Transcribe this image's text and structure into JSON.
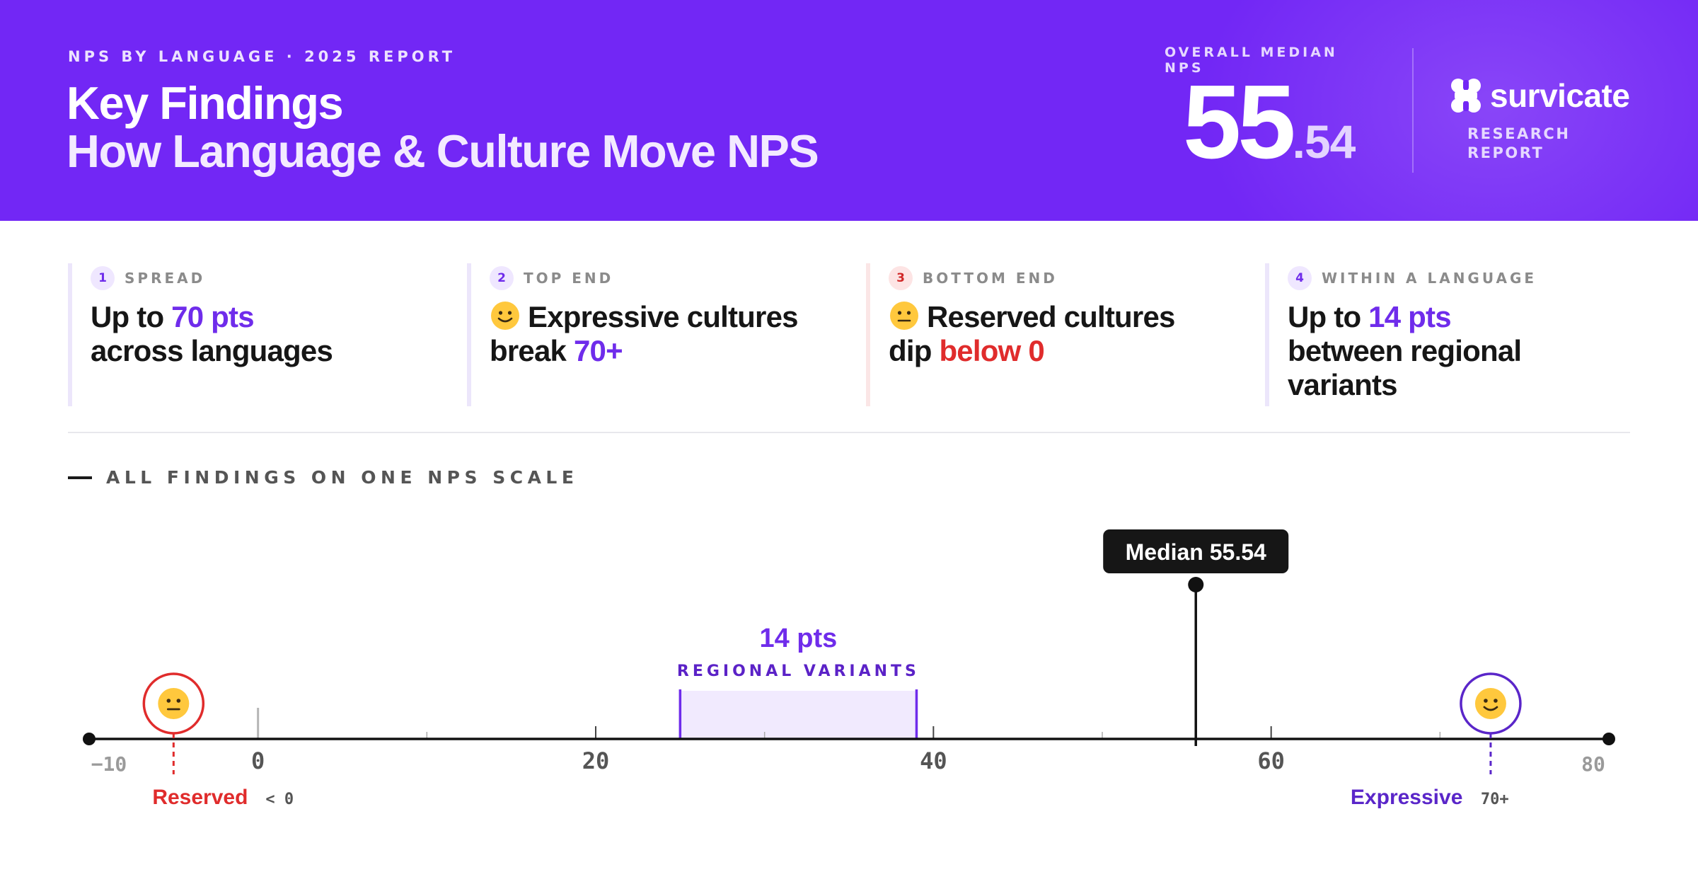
{
  "header": {
    "eyebrow": "NPS BY LANGUAGE · 2025 REPORT",
    "title_line1": "Key Findings",
    "title_line2": "How Language & Culture Move NPS",
    "median_label": "OVERALL MEDIAN NPS",
    "median_int": "55",
    "median_dec": ".54",
    "brand_name": "survicate",
    "brand_sub_line1": "RESEARCH",
    "brand_sub_line2": "REPORT"
  },
  "colors": {
    "header_bg": "#7227f5",
    "accent_purple": "#6f2ceb",
    "accent_red": "#e02c2c"
  },
  "findings": [
    {
      "num": "1",
      "label": "SPREAD",
      "pre": "Up to ",
      "hl": "70 pts",
      "line2": "across languages",
      "icon": ""
    },
    {
      "num": "2",
      "label": "TOP END",
      "pre": "Expressive cultures",
      "line2pre": "break ",
      "hl": "70+",
      "icon": "slightly-smiling-face-icon"
    },
    {
      "num": "3",
      "label": "BOTTOM END",
      "pre": "Reserved cultures",
      "line2pre": "dip ",
      "hl": "below 0",
      "icon": "neutral-face-icon"
    },
    {
      "num": "4",
      "label": "WITHIN A LANGUAGE",
      "pre": "Up to ",
      "hl": "14 pts",
      "line2": "between regional",
      "line3": "variants",
      "icon": ""
    }
  ],
  "scale": {
    "title": "ALL FINDINGS ON ONE NPS SCALE",
    "min": -10,
    "max": 80,
    "tick_labels": [
      "−10",
      "0",
      "20",
      "40",
      "60",
      "80"
    ],
    "median_value": 55.54,
    "median_tooltip": "Median 55.54",
    "band_from": 25,
    "band_to": 39,
    "band_value": "14 pts",
    "band_label": "REGIONAL VARIANTS",
    "reserved_value": -5,
    "reserved_label": "Reserved",
    "reserved_note": "< 0",
    "expressive_value": 73,
    "expressive_label": "Expressive",
    "expressive_note": "70+"
  }
}
